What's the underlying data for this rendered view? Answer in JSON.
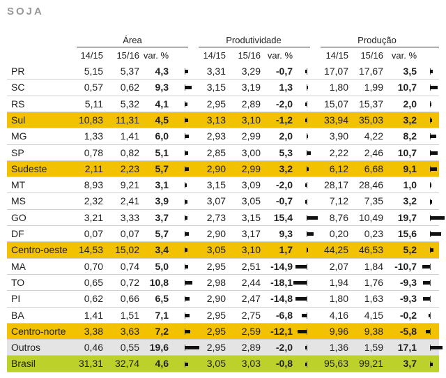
{
  "title": "SOJA",
  "colors": {
    "region": "#f2c200",
    "others": "#e4e4e4",
    "national": "#bcd22a"
  },
  "chart_data": {
    "type": "table",
    "groups": [
      {
        "name": "Área",
        "columns": [
          "14/15",
          "15/16",
          "var. %"
        ]
      },
      {
        "name": "Produtividade",
        "columns": [
          "14/15",
          "15/16",
          "var. %"
        ]
      },
      {
        "name": "Produção",
        "columns": [
          "14/15",
          "15/16",
          "var. %"
        ]
      }
    ],
    "rows": [
      {
        "name": "PR",
        "kind": "state",
        "area": [
          "5,15",
          "5,37",
          "4,3"
        ],
        "prod": [
          "3,31",
          "3,29",
          "-0,7"
        ],
        "total": [
          "17,07",
          "17,67",
          "3,5"
        ]
      },
      {
        "name": "SC",
        "kind": "state",
        "area": [
          "0,57",
          "0,62",
          "9,3"
        ],
        "prod": [
          "3,15",
          "3,19",
          "1,3"
        ],
        "total": [
          "1,80",
          "1,99",
          "10,7"
        ]
      },
      {
        "name": "RS",
        "kind": "state",
        "area": [
          "5,11",
          "5,32",
          "4,1"
        ],
        "prod": [
          "2,95",
          "2,89",
          "-2,0"
        ],
        "total": [
          "15,07",
          "15,37",
          "2,0"
        ]
      },
      {
        "name": "Sul",
        "kind": "region",
        "area": [
          "10,83",
          "11,31",
          "4,5"
        ],
        "prod": [
          "3,13",
          "3,10",
          "-1,2"
        ],
        "total": [
          "33,94",
          "35,03",
          "3,2"
        ]
      },
      {
        "name": "MG",
        "kind": "state",
        "area": [
          "1,33",
          "1,41",
          "6,0"
        ],
        "prod": [
          "2,93",
          "2,99",
          "2,0"
        ],
        "total": [
          "3,90",
          "4,22",
          "8,2"
        ]
      },
      {
        "name": "SP",
        "kind": "state",
        "area": [
          "0,78",
          "0,82",
          "5,1"
        ],
        "prod": [
          "2,85",
          "3,00",
          "5,3"
        ],
        "total": [
          "2,22",
          "2,46",
          "10,7"
        ]
      },
      {
        "name": "Sudeste",
        "kind": "region",
        "area": [
          "2,11",
          "2,23",
          "5,7"
        ],
        "prod": [
          "2,90",
          "2,99",
          "3,2"
        ],
        "total": [
          "6,12",
          "6,68",
          "9,1"
        ]
      },
      {
        "name": "MT",
        "kind": "state",
        "area": [
          "8,93",
          "9,21",
          "3,1"
        ],
        "prod": [
          "3,15",
          "3,09",
          "-2,0"
        ],
        "total": [
          "28,17",
          "28,46",
          "1,0"
        ]
      },
      {
        "name": "MS",
        "kind": "state",
        "area": [
          "2,32",
          "2,41",
          "3,9"
        ],
        "prod": [
          "3,07",
          "3,05",
          "-0,7"
        ],
        "total": [
          "7,12",
          "7,35",
          "3,2"
        ]
      },
      {
        "name": "GO",
        "kind": "state",
        "area": [
          "3,21",
          "3,33",
          "3,7"
        ],
        "prod": [
          "2,73",
          "3,15",
          "15,4"
        ],
        "total": [
          "8,76",
          "10,49",
          "19,7"
        ]
      },
      {
        "name": "DF",
        "kind": "state",
        "area": [
          "0,07",
          "0,07",
          "5,7"
        ],
        "prod": [
          "2,90",
          "3,17",
          "9,3"
        ],
        "total": [
          "0,20",
          "0,23",
          "15,6"
        ]
      },
      {
        "name": "Centro-oeste",
        "kind": "region",
        "area": [
          "14,53",
          "15,02",
          "3,4"
        ],
        "prod": [
          "3,05",
          "3,10",
          "1,7"
        ],
        "total": [
          "44,25",
          "46,53",
          "5,2"
        ]
      },
      {
        "name": "MA",
        "kind": "state",
        "area": [
          "0,70",
          "0,74",
          "5,0"
        ],
        "prod": [
          "2,95",
          "2,51",
          "-14,9"
        ],
        "total": [
          "2,07",
          "1,84",
          "-10,7"
        ]
      },
      {
        "name": "TO",
        "kind": "state",
        "area": [
          "0,65",
          "0,72",
          "10,8"
        ],
        "prod": [
          "2,98",
          "2,44",
          "-18,1"
        ],
        "total": [
          "1,94",
          "1,76",
          "-9,3"
        ]
      },
      {
        "name": "PI",
        "kind": "state",
        "area": [
          "0,62",
          "0,66",
          "6,5"
        ],
        "prod": [
          "2,90",
          "2,47",
          "-14,8"
        ],
        "total": [
          "1,80",
          "1,63",
          "-9,3"
        ]
      },
      {
        "name": "BA",
        "kind": "state",
        "area": [
          "1,41",
          "1,51",
          "7,1"
        ],
        "prod": [
          "2,95",
          "2,75",
          "-6,8"
        ],
        "total": [
          "4,16",
          "4,15",
          "-0,2"
        ]
      },
      {
        "name": "Centro-norte",
        "kind": "region",
        "area": [
          "3,38",
          "3,63",
          "7,2"
        ],
        "prod": [
          "2,95",
          "2,59",
          "-12,1"
        ],
        "total": [
          "9,96",
          "9,38",
          "-5,8"
        ]
      },
      {
        "name": "Outros",
        "kind": "others",
        "area": [
          "0,46",
          "0,55",
          "19,6"
        ],
        "prod": [
          "2,95",
          "2,89",
          "-2,0"
        ],
        "total": [
          "1,36",
          "1,59",
          "17,1"
        ]
      },
      {
        "name": "Brasil",
        "kind": "national",
        "area": [
          "31,31",
          "32,74",
          "4,6"
        ],
        "prod": [
          "3,05",
          "3,03",
          "-0,8"
        ],
        "total": [
          "95,63",
          "99,21",
          "3,7"
        ]
      }
    ]
  }
}
